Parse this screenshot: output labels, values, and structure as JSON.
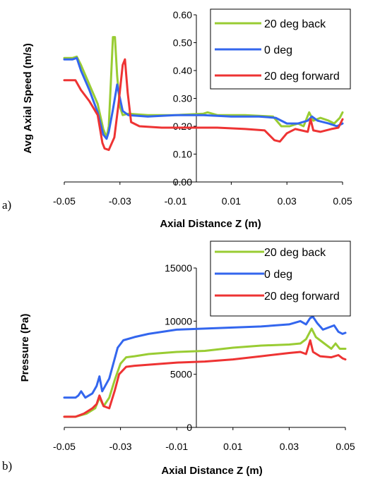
{
  "chart_data": [
    {
      "type": "line",
      "panel_label": "a)",
      "title": "",
      "xlabel": "Axial Distance Z (m)",
      "ylabel": "Avg Axial Speed (m/s)",
      "xlim": [
        -0.05,
        0.05
      ],
      "ylim": [
        0.0,
        0.6
      ],
      "xticks": [
        -0.05,
        -0.03,
        -0.01,
        0.01,
        0.03,
        0.05
      ],
      "xtick_labels": [
        "-0.05",
        "-0.03",
        "-0.01",
        "0.01",
        "0.03",
        "0.05"
      ],
      "yticks": [
        0.0,
        0.1,
        0.2,
        0.3,
        0.4,
        0.5,
        0.6
      ],
      "ytick_labels": [
        "0.00",
        "0.10",
        "0.20",
        "0.30",
        "0.40",
        "0.50",
        "0.60"
      ],
      "legend_position": "top-right",
      "series": [
        {
          "name": "20 deg back",
          "color": "#99cc33",
          "points": [
            [
              -0.05,
              0.445
            ],
            [
              -0.047,
              0.445
            ],
            [
              -0.0455,
              0.45
            ],
            [
              -0.044,
              0.42
            ],
            [
              -0.041,
              0.35
            ],
            [
              -0.038,
              0.28
            ],
            [
              -0.036,
              0.19
            ],
            [
              -0.0348,
              0.16
            ],
            [
              -0.034,
              0.2
            ],
            [
              -0.0333,
              0.35
            ],
            [
              -0.0325,
              0.52
            ],
            [
              -0.0318,
              0.52
            ],
            [
              -0.031,
              0.38
            ],
            [
              -0.03,
              0.27
            ],
            [
              -0.029,
              0.24
            ],
            [
              -0.027,
              0.245
            ],
            [
              -0.02,
              0.24
            ],
            [
              -0.01,
              0.24
            ],
            [
              0.0,
              0.245
            ],
            [
              0.0015,
              0.25
            ],
            [
              0.005,
              0.24
            ],
            [
              0.015,
              0.24
            ],
            [
              0.025,
              0.235
            ],
            [
              0.028,
              0.2
            ],
            [
              0.031,
              0.2
            ],
            [
              0.034,
              0.21
            ],
            [
              0.036,
              0.2
            ],
            [
              0.038,
              0.25
            ],
            [
              0.0395,
              0.22
            ],
            [
              0.042,
              0.23
            ],
            [
              0.045,
              0.22
            ],
            [
              0.047,
              0.21
            ],
            [
              0.049,
              0.23
            ],
            [
              0.05,
              0.25
            ]
          ]
        },
        {
          "name": "0 deg",
          "color": "#3366ee",
          "points": [
            [
              -0.05,
              0.44
            ],
            [
              -0.047,
              0.44
            ],
            [
              -0.0455,
              0.445
            ],
            [
              -0.044,
              0.4
            ],
            [
              -0.041,
              0.33
            ],
            [
              -0.038,
              0.25
            ],
            [
              -0.036,
              0.17
            ],
            [
              -0.0348,
              0.155
            ],
            [
              -0.034,
              0.18
            ],
            [
              -0.0325,
              0.26
            ],
            [
              -0.031,
              0.35
            ],
            [
              -0.0302,
              0.31
            ],
            [
              -0.029,
              0.255
            ],
            [
              -0.027,
              0.24
            ],
            [
              -0.02,
              0.235
            ],
            [
              -0.01,
              0.24
            ],
            [
              0.0,
              0.24
            ],
            [
              0.01,
              0.235
            ],
            [
              0.02,
              0.235
            ],
            [
              0.026,
              0.23
            ],
            [
              0.03,
              0.21
            ],
            [
              0.034,
              0.21
            ],
            [
              0.0375,
              0.22
            ],
            [
              0.039,
              0.235
            ],
            [
              0.041,
              0.22
            ],
            [
              0.045,
              0.21
            ],
            [
              0.048,
              0.2
            ],
            [
              0.05,
              0.21
            ]
          ]
        },
        {
          "name": "20 deg forward",
          "color": "#ee3333",
          "points": [
            [
              -0.05,
              0.365
            ],
            [
              -0.046,
              0.365
            ],
            [
              -0.044,
              0.33
            ],
            [
              -0.041,
              0.29
            ],
            [
              -0.038,
              0.24
            ],
            [
              -0.0363,
              0.14
            ],
            [
              -0.0355,
              0.12
            ],
            [
              -0.034,
              0.115
            ],
            [
              -0.032,
              0.16
            ],
            [
              -0.0305,
              0.28
            ],
            [
              -0.029,
              0.42
            ],
            [
              -0.0282,
              0.44
            ],
            [
              -0.0272,
              0.32
            ],
            [
              -0.026,
              0.215
            ],
            [
              -0.023,
              0.2
            ],
            [
              -0.015,
              0.195
            ],
            [
              -0.005,
              0.195
            ],
            [
              0.005,
              0.195
            ],
            [
              0.015,
              0.19
            ],
            [
              0.022,
              0.185
            ],
            [
              0.0255,
              0.15
            ],
            [
              0.0275,
              0.145
            ],
            [
              0.03,
              0.175
            ],
            [
              0.033,
              0.19
            ],
            [
              0.0375,
              0.18
            ],
            [
              0.0385,
              0.225
            ],
            [
              0.0395,
              0.185
            ],
            [
              0.042,
              0.18
            ],
            [
              0.046,
              0.19
            ],
            [
              0.0485,
              0.195
            ],
            [
              0.05,
              0.225
            ]
          ]
        }
      ]
    },
    {
      "type": "line",
      "panel_label": "b)",
      "title": "",
      "xlabel": "Axial Distance Z (m)",
      "ylabel": "Pressure (Pa)",
      "xlim": [
        -0.05,
        0.05
      ],
      "ylim": [
        0,
        15000
      ],
      "xticks": [
        -0.05,
        -0.03,
        -0.01,
        0.01,
        0.03,
        0.05
      ],
      "xtick_labels": [
        "-0.05",
        "-0.03",
        "-0.01",
        "0.01",
        "0.03",
        "0.05"
      ],
      "yticks": [
        0,
        5000,
        10000,
        15000
      ],
      "ytick_labels": [
        "0",
        "5000",
        "10000",
        "15000"
      ],
      "legend_position": "top-right",
      "series": [
        {
          "name": "20 deg back",
          "color": "#99cc33",
          "points": [
            [
              -0.05,
              1000
            ],
            [
              -0.046,
              1000
            ],
            [
              -0.042,
              1300
            ],
            [
              -0.039,
              1800
            ],
            [
              -0.0375,
              2800
            ],
            [
              -0.036,
              2000
            ],
            [
              -0.034,
              2800
            ],
            [
              -0.032,
              4500
            ],
            [
              -0.03,
              6000
            ],
            [
              -0.028,
              6600
            ],
            [
              -0.025,
              6700
            ],
            [
              -0.02,
              6900
            ],
            [
              -0.015,
              7000
            ],
            [
              -0.01,
              7100
            ],
            [
              0.0,
              7200
            ],
            [
              0.01,
              7500
            ],
            [
              0.02,
              7700
            ],
            [
              0.03,
              7800
            ],
            [
              0.034,
              7900
            ],
            [
              0.036,
              8300
            ],
            [
              0.038,
              9300
            ],
            [
              0.0395,
              8500
            ],
            [
              0.041,
              8200
            ],
            [
              0.043,
              7800
            ],
            [
              0.045,
              7400
            ],
            [
              0.0465,
              7900
            ],
            [
              0.048,
              7400
            ],
            [
              0.05,
              7400
            ]
          ]
        },
        {
          "name": "0 deg",
          "color": "#3366ee",
          "points": [
            [
              -0.05,
              2800
            ],
            [
              -0.046,
              2800
            ],
            [
              -0.045,
              3000
            ],
            [
              -0.044,
              3400
            ],
            [
              -0.0425,
              2800
            ],
            [
              -0.04,
              3200
            ],
            [
              -0.0385,
              3900
            ],
            [
              -0.0375,
              4800
            ],
            [
              -0.0365,
              3400
            ],
            [
              -0.034,
              4600
            ],
            [
              -0.031,
              7500
            ],
            [
              -0.029,
              8200
            ],
            [
              -0.025,
              8500
            ],
            [
              -0.02,
              8800
            ],
            [
              -0.015,
              9000
            ],
            [
              -0.01,
              9200
            ],
            [
              0.0,
              9300
            ],
            [
              0.01,
              9400
            ],
            [
              0.02,
              9500
            ],
            [
              0.03,
              9700
            ],
            [
              0.034,
              10000
            ],
            [
              0.036,
              9700
            ],
            [
              0.0375,
              10300
            ],
            [
              0.0385,
              10400
            ],
            [
              0.04,
              9800
            ],
            [
              0.042,
              9200
            ],
            [
              0.044,
              9400
            ],
            [
              0.046,
              9600
            ],
            [
              0.0475,
              9000
            ],
            [
              0.049,
              8800
            ],
            [
              0.05,
              8900
            ]
          ]
        },
        {
          "name": "20 deg forward",
          "color": "#ee3333",
          "points": [
            [
              -0.05,
              1000
            ],
            [
              -0.046,
              1000
            ],
            [
              -0.043,
              1300
            ],
            [
              -0.04,
              1800
            ],
            [
              -0.0385,
              2200
            ],
            [
              -0.0375,
              3000
            ],
            [
              -0.036,
              2000
            ],
            [
              -0.034,
              1800
            ],
            [
              -0.032,
              3500
            ],
            [
              -0.0305,
              5000
            ],
            [
              -0.028,
              5700
            ],
            [
              -0.025,
              5800
            ],
            [
              -0.02,
              5900
            ],
            [
              -0.015,
              6000
            ],
            [
              -0.01,
              6100
            ],
            [
              0.0,
              6200
            ],
            [
              0.01,
              6400
            ],
            [
              0.02,
              6700
            ],
            [
              0.03,
              7000
            ],
            [
              0.034,
              7100
            ],
            [
              0.036,
              6900
            ],
            [
              0.0375,
              8200
            ],
            [
              0.0385,
              7100
            ],
            [
              0.041,
              6700
            ],
            [
              0.045,
              6600
            ],
            [
              0.0475,
              6800
            ],
            [
              0.049,
              6500
            ],
            [
              0.05,
              6400
            ]
          ]
        }
      ]
    }
  ]
}
